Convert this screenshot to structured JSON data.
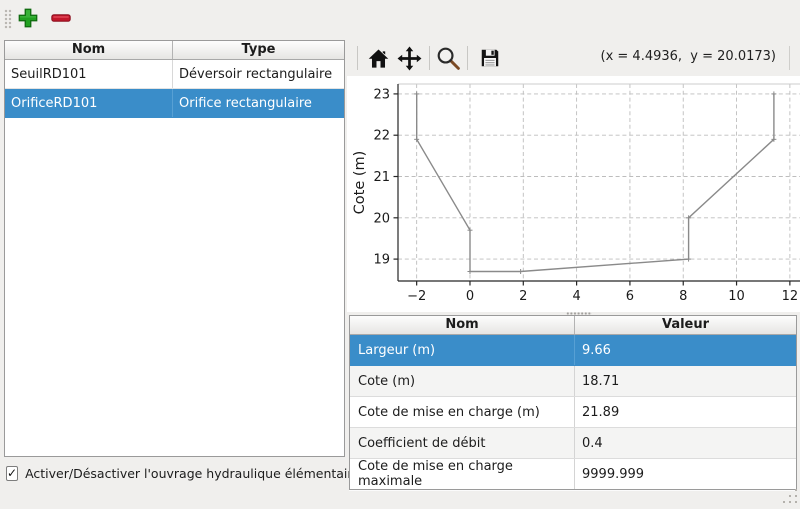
{
  "toolbar": {
    "add_tooltip": "add",
    "remove_tooltip": "remove"
  },
  "structures_table": {
    "columns": [
      "Nom",
      "Type"
    ],
    "rows": [
      {
        "nom": "SeuilRD101",
        "type": "Déversoir rectangulaire",
        "selected": false
      },
      {
        "nom": "OrificeRD101",
        "type": "Orifice rectangulaire",
        "selected": true
      }
    ]
  },
  "checkbox": {
    "label": "Activer/Désactiver l'ouvrage hydraulique élémentaire",
    "checked": true
  },
  "plot_toolbar": {
    "icons": [
      "home",
      "pan",
      "zoom",
      "save"
    ],
    "coordinates": "(x = 4.4936,  y = 20.0173)"
  },
  "chart_data": {
    "type": "line",
    "title": "",
    "xlabel": "",
    "ylabel": "Cote (m)",
    "points": [
      [
        -2,
        23
      ],
      [
        -2,
        21.9
      ],
      [
        0,
        19.7
      ],
      [
        0,
        18.7
      ],
      [
        1.9,
        18.7
      ],
      [
        8.2,
        19.0
      ],
      [
        8.2,
        20.0
      ],
      [
        11.4,
        21.9
      ],
      [
        11.4,
        23
      ]
    ],
    "xticks": [
      -2,
      0,
      2,
      4,
      6,
      8,
      10,
      12
    ],
    "yticks": [
      19,
      20,
      21,
      22,
      23
    ],
    "xlim": [
      -2.7,
      12.38
    ],
    "ylim": [
      18.47,
      23.24
    ],
    "grid": true,
    "legend": null,
    "line_color": "#8a8a8a",
    "grid_color": "#bdbdbd"
  },
  "properties_table": {
    "columns": [
      "Nom",
      "Valeur"
    ],
    "rows": [
      {
        "nom": "Largeur (m)",
        "valeur": "9.66",
        "selected": true
      },
      {
        "nom": "Cote (m)",
        "valeur": "18.71",
        "selected": false
      },
      {
        "nom": "Cote de mise en charge (m)",
        "valeur": "21.89",
        "selected": false
      },
      {
        "nom": "Coefficient de débit",
        "valeur": "0.4",
        "selected": false
      },
      {
        "nom": "Cote de mise en charge maximale",
        "valeur": "9999.999",
        "selected": false
      }
    ]
  },
  "colors": {
    "selection": "#3a8dc9",
    "window_bg": "#f0efed",
    "add_green": "#21a121",
    "remove_red": "#c3172b"
  }
}
